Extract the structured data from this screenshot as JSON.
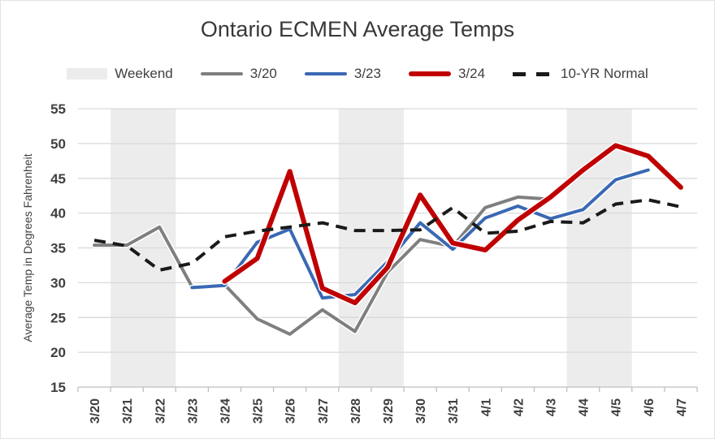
{
  "page": {
    "title": "Ontario ECMEN Average Temps"
  },
  "chart_data": {
    "type": "line",
    "title": "Ontario ECMEN Average Temps",
    "ylabel": "Average Temp in Degrees Fahrenheit",
    "xlabel": "",
    "ylim": [
      15,
      55
    ],
    "ytick_step": 5,
    "grid": true,
    "legend_position": "top",
    "categories": [
      "3/20",
      "3/21",
      "3/22",
      "3/23",
      "3/24",
      "3/25",
      "3/26",
      "3/27",
      "3/28",
      "3/29",
      "3/30",
      "3/31",
      "4/1",
      "4/2",
      "4/3",
      "4/4",
      "4/5",
      "4/6",
      "4/7"
    ],
    "weekend_shading": {
      "label": "Weekend",
      "color": "#ececec",
      "bands": [
        [
          "3/21",
          "3/22"
        ],
        [
          "3/28",
          "3/29"
        ],
        [
          "4/4",
          "4/5"
        ]
      ]
    },
    "series": [
      {
        "name": "3/20",
        "color": "#7f7f7f",
        "stroke_width": 4,
        "dashed": false,
        "values": [
          35.4,
          35.4,
          38.0,
          29.4,
          29.7,
          24.8,
          22.6,
          26.1,
          23.0,
          31.5,
          36.2,
          35.2,
          40.8,
          42.3,
          42.0,
          null,
          null,
          null,
          null
        ]
      },
      {
        "name": "3/23",
        "color": "#3a68b4",
        "stroke_width": 4,
        "dashed": false,
        "values": [
          null,
          null,
          null,
          29.3,
          29.6,
          35.8,
          37.7,
          27.8,
          28.3,
          33.0,
          38.6,
          34.8,
          39.3,
          41.0,
          39.2,
          40.5,
          44.8,
          46.2,
          null
        ]
      },
      {
        "name": "3/24",
        "color": "#c00000",
        "stroke_width": 6,
        "dashed": false,
        "values": [
          null,
          null,
          null,
          null,
          30.2,
          33.5,
          46.0,
          29.2,
          27.1,
          32.2,
          42.6,
          35.7,
          34.7,
          39.0,
          42.3,
          46.2,
          49.7,
          48.2,
          43.7
        ]
      },
      {
        "name": "10-YR Normal",
        "color": "#1a1a1a",
        "stroke_width": 4,
        "dashed": true,
        "values": [
          36.1,
          35.3,
          31.8,
          32.8,
          36.6,
          37.4,
          38.0,
          38.6,
          37.5,
          37.5,
          37.6,
          40.8,
          37.1,
          37.4,
          38.8,
          38.6,
          41.3,
          41.9,
          40.9
        ]
      }
    ],
    "legend": [
      {
        "label": "Weekend",
        "swatch": "band"
      },
      {
        "label": "3/20",
        "swatch": "line"
      },
      {
        "label": "3/23",
        "swatch": "line"
      },
      {
        "label": "3/24",
        "swatch": "line"
      },
      {
        "label": "10-YR Normal",
        "swatch": "dashed-line"
      }
    ]
  }
}
